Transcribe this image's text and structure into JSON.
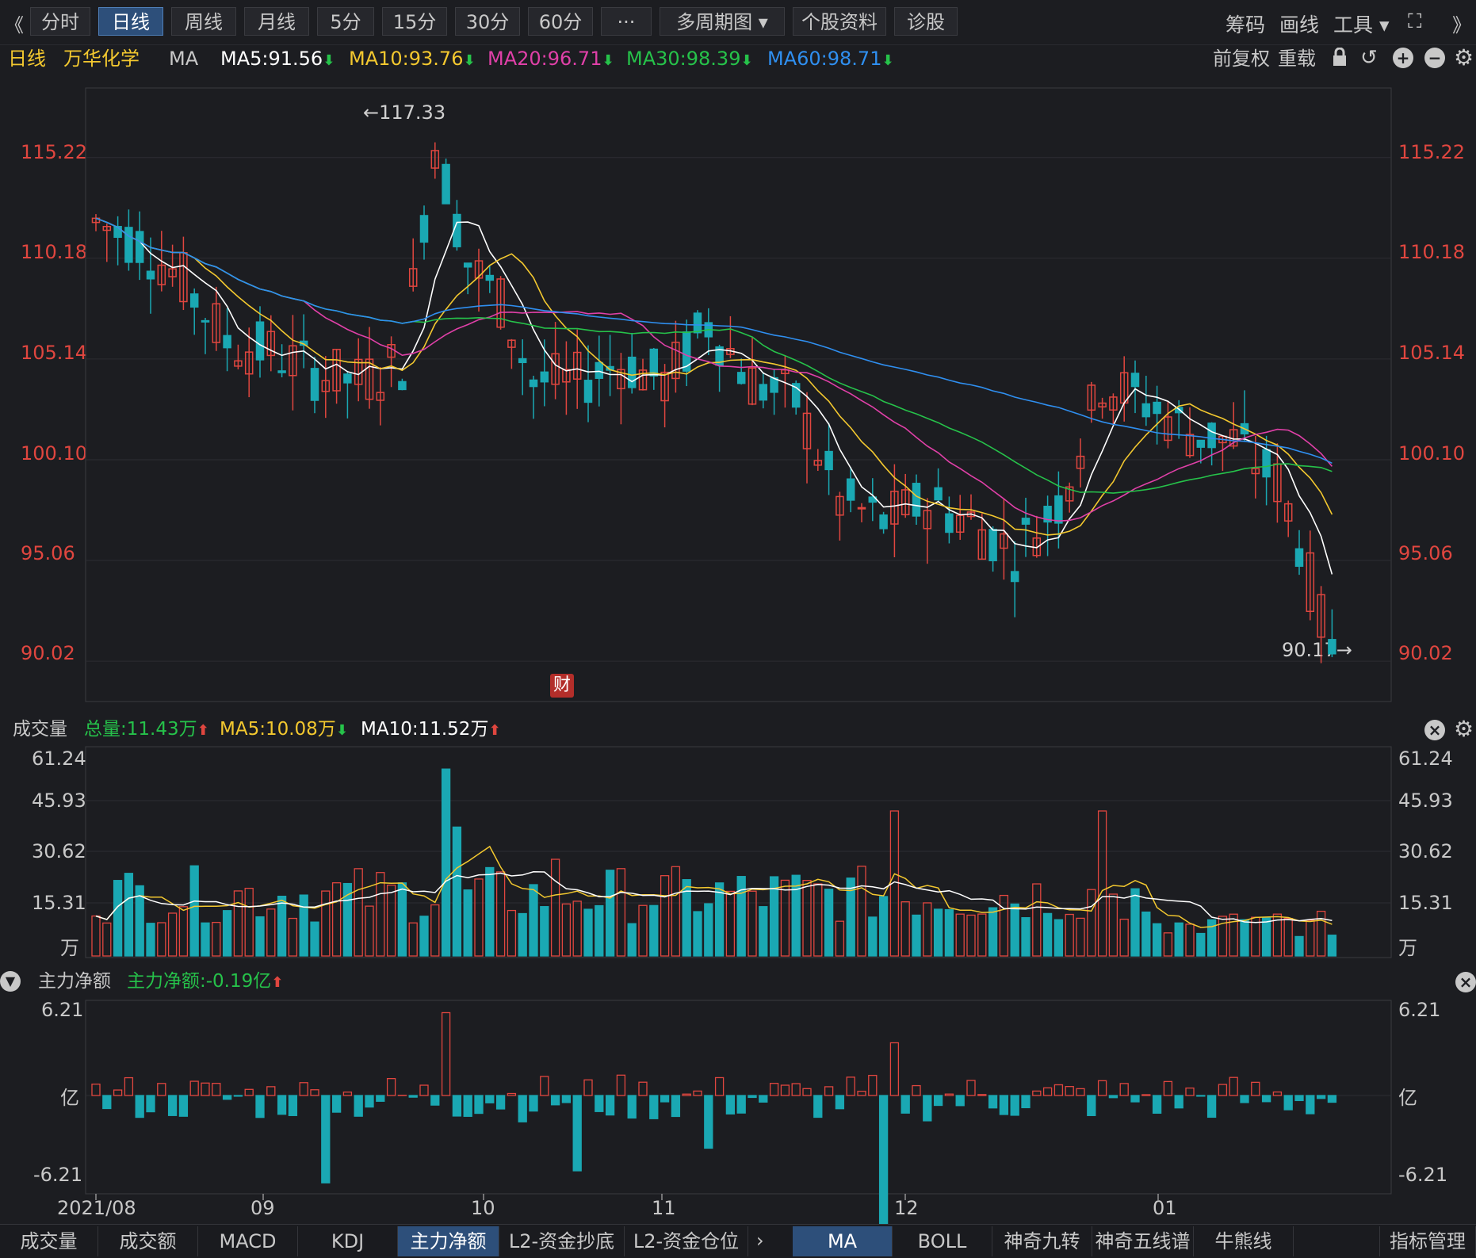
{
  "toolbar": {
    "back_glyph": "《",
    "tabs": [
      "分时",
      "日线",
      "周线",
      "月线",
      "5分",
      "15分",
      "30分",
      "60分",
      "···",
      "多周期图 ▾",
      "个股资料",
      "诊股"
    ],
    "active_tab": "日线",
    "right": [
      "筹码",
      "画线",
      "工具 ▾",
      "⛶"
    ],
    "forward_glyph": "》"
  },
  "info": {
    "period": "日线",
    "stock_name": "万华化学",
    "indicator": "MA",
    "ma5": "MA5:91.56",
    "ma10": "MA10:93.76",
    "ma20": "MA20:96.71",
    "ma30": "MA30:98.39",
    "ma60": "MA60:98.71",
    "fq": "前复权",
    "reload": "重载"
  },
  "colors": {
    "up": "#e0463f",
    "down": "#1aa8b3",
    "ma5": "#ffffff",
    "ma10": "#f3c82f",
    "ma20": "#e040a8",
    "ma30": "#26c24a",
    "ma60": "#2f8ff0",
    "axis_red": "#e0463f",
    "green": "#26c24a"
  },
  "price_axis": [
    "115.22",
    "110.18",
    "105.14",
    "100.10",
    "95.06",
    "90.02"
  ],
  "price_high_label": "←117.33",
  "price_low_label": "90.17→",
  "fin_badge": "财",
  "volume": {
    "title": "成交量",
    "total": "总量:11.43万",
    "ma5": "MA5:10.08万",
    "ma10": "MA10:11.52万",
    "axis": [
      "61.24",
      "45.93",
      "30.62",
      "15.31"
    ],
    "unit": "万"
  },
  "netflow": {
    "title": "主力净额",
    "value": "主力净额:-0.19亿",
    "axis_top": "6.21",
    "axis_bottom": "-6.21",
    "unit": "亿"
  },
  "x_axis": [
    "2021/08",
    "09",
    "10",
    "11",
    "12",
    "01"
  ],
  "bottom_tabs_left": [
    "成交量",
    "成交额",
    "MACD",
    "KDJ",
    "主力净额",
    "L2-资金抄底",
    "L2-资金仓位"
  ],
  "bottom_tabs_left_active": "主力净额",
  "bottom_tabs_right": [
    "MA",
    "BOLL",
    "神奇九转",
    "神奇五线谱",
    "牛熊线"
  ],
  "bottom_tabs_right_active": "MA",
  "manage": "指标管理",
  "chart_data": {
    "type": "candlestick",
    "x_ticks": [
      "2021/08",
      "09",
      "10",
      "11",
      "12",
      "01"
    ],
    "price_range": [
      90.02,
      117.33
    ],
    "price_ticks": [
      115.22,
      110.18,
      105.14,
      100.1,
      95.06,
      90.02
    ],
    "high": 117.33,
    "low": 90.17,
    "last_close_approx": 90.7,
    "moving_averages": {
      "MA5": 91.56,
      "MA10": 93.76,
      "MA20": 96.71,
      "MA30": 98.39,
      "MA60": 98.71
    },
    "volume_range": [
      0,
      61.24
    ],
    "volume_ticks": [
      61.24,
      45.93,
      30.62,
      15.31
    ],
    "volume_ma": {
      "MA5": 10.08,
      "MA10": 11.52
    },
    "volume_total": 11.43,
    "netflow_range": [
      -6.21,
      6.21
    ],
    "netflow_last": -0.19
  }
}
